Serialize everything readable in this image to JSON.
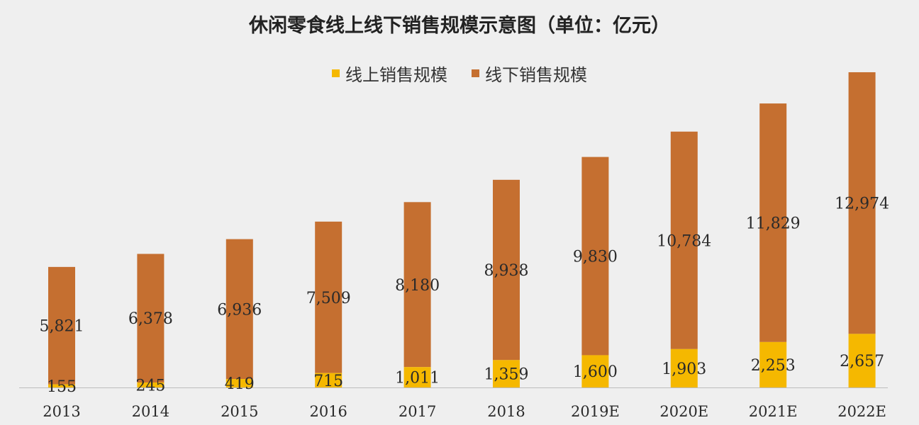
{
  "chart_data": {
    "type": "bar",
    "stacked": true,
    "title": "休闲零食线上线下销售规模示意图（单位：亿元）",
    "categories": [
      "2013",
      "2014",
      "2015",
      "2016",
      "2017",
      "2018",
      "2019E",
      "2020E",
      "2021E",
      "2022E"
    ],
    "series": [
      {
        "name": "线上销售规模",
        "color": "#f5b800",
        "values": [
          155,
          245,
          419,
          715,
          1011,
          1359,
          1600,
          1903,
          2253,
          2657
        ],
        "labels": [
          "155",
          "245",
          "419",
          "715",
          "1,011",
          "1,359",
          "1,600",
          "1,903",
          "2,253",
          "2,657"
        ]
      },
      {
        "name": "线下销售规模",
        "color": "#c56f30",
        "values": [
          5821,
          6378,
          6936,
          7509,
          8180,
          8938,
          9830,
          10784,
          11829,
          12974
        ],
        "labels": [
          "5,821",
          "6,378",
          "6,936",
          "7,509",
          "8,180",
          "8,938",
          "9,830",
          "10,784",
          "11,829",
          "12,974"
        ]
      }
    ],
    "ylim": [
      0,
      17000
    ],
    "grid": false,
    "legend": "top"
  }
}
